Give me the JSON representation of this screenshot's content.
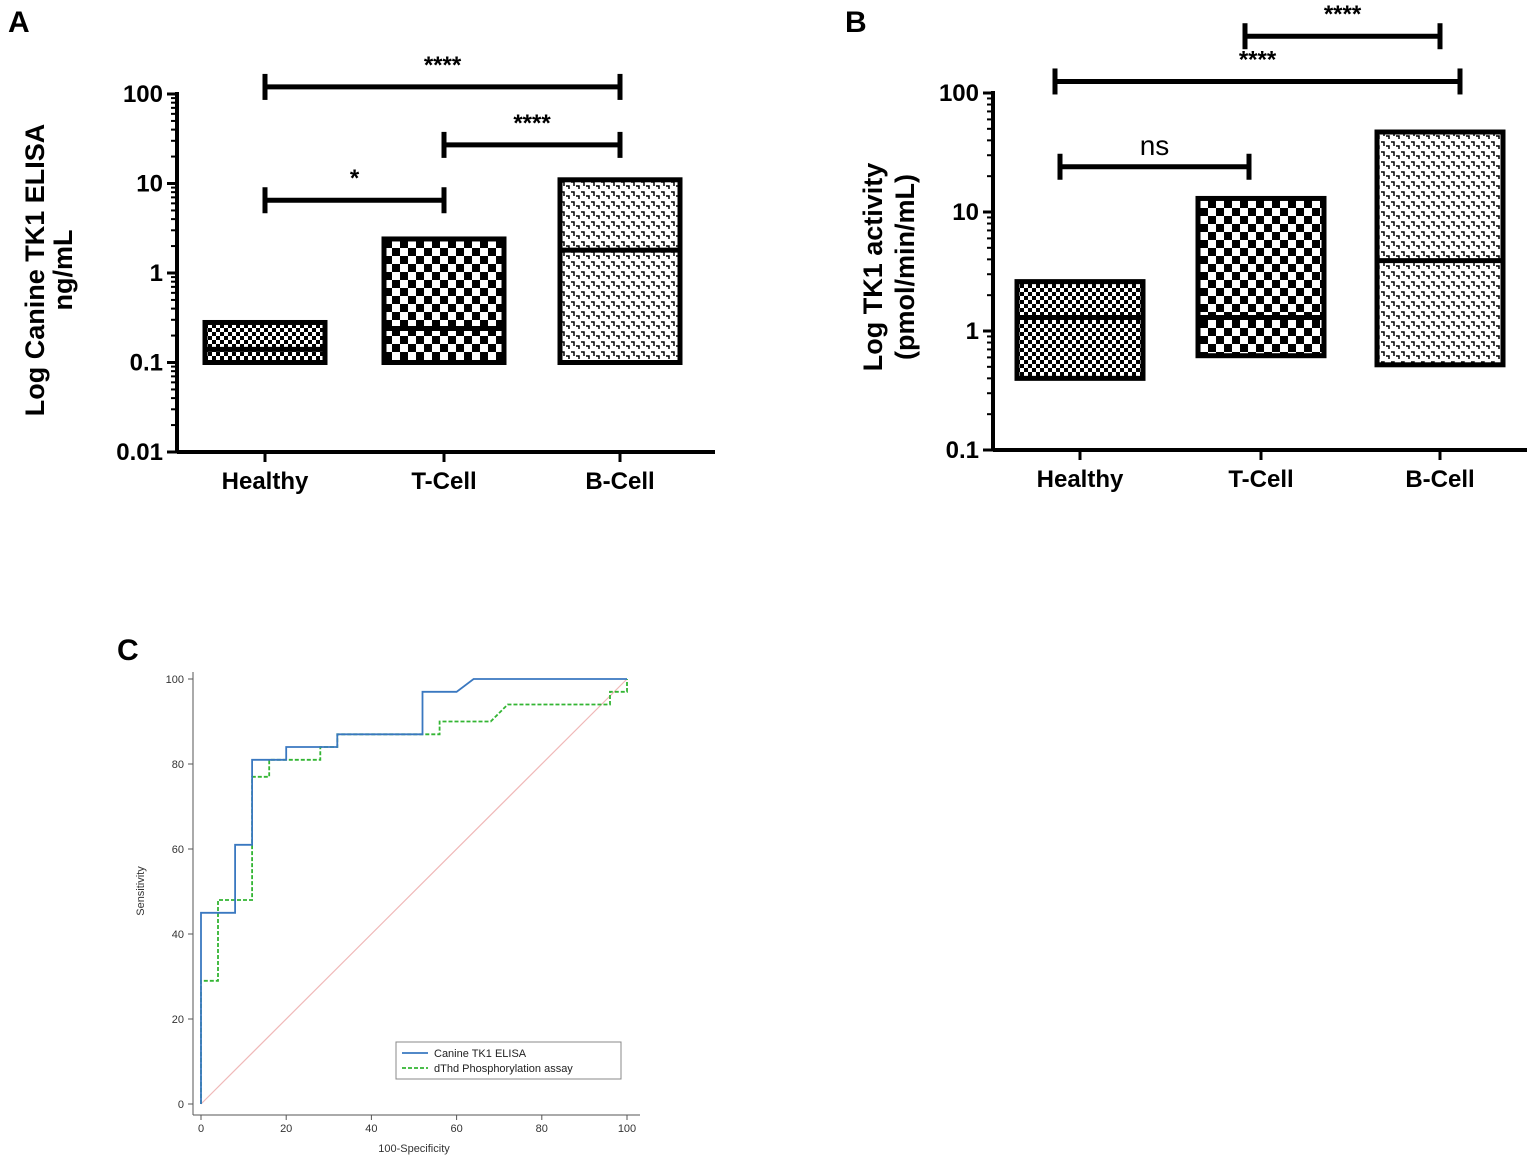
{
  "chart_data": [
    {
      "panel": "A",
      "type": "bar",
      "scale": "log",
      "ylabel_line1": "Log Canine TK1 ELISA",
      "ylabel_line2": "ng/mL",
      "ylim": [
        0.01,
        100
      ],
      "yticks": [
        "0.01",
        "0.1",
        "1",
        "10",
        "100"
      ],
      "ytick_values": [
        0.01,
        0.1,
        1,
        10,
        100
      ],
      "categories": [
        "Healthy",
        "T-Cell",
        "B-Cell"
      ],
      "boxes": [
        {
          "category": "Healthy",
          "min": 0.1,
          "max": 0.28,
          "median": 0.14,
          "pattern": "dense-check"
        },
        {
          "category": "T-Cell",
          "min": 0.1,
          "max": 2.4,
          "median": 0.24,
          "pattern": "check"
        },
        {
          "category": "B-Cell",
          "min": 0.1,
          "max": 11,
          "median": 1.8,
          "pattern": "dash"
        }
      ],
      "comparisons": [
        {
          "from": "Healthy",
          "to": "B-Cell",
          "label": "****",
          "y": 120
        },
        {
          "from": "T-Cell",
          "to": "B-Cell",
          "label": "****",
          "y": 27
        },
        {
          "from": "Healthy",
          "to": "T-Cell",
          "label": "*",
          "y": 6.5
        }
      ]
    },
    {
      "panel": "B",
      "type": "bar",
      "scale": "log",
      "ylabel_line1": "Log TK1 activity",
      "ylabel_line2": "(pmol/min/mL)",
      "ylim": [
        0.1,
        100
      ],
      "yticks": [
        "0.1",
        "1",
        "10",
        "100"
      ],
      "ytick_values": [
        0.1,
        1,
        10,
        100
      ],
      "categories": [
        "Healthy",
        "T-Cell",
        "B-Cell"
      ],
      "boxes": [
        {
          "category": "Healthy",
          "min": 0.4,
          "max": 2.6,
          "median": 1.3,
          "pattern": "dense-check"
        },
        {
          "category": "T-Cell",
          "min": 0.62,
          "max": 13,
          "median": 1.3,
          "pattern": "check"
        },
        {
          "category": "B-Cell",
          "min": 0.52,
          "max": 47,
          "median": 3.9,
          "pattern": "dash"
        }
      ],
      "comparisons": [
        {
          "from": "T-Cell",
          "to": "B-Cell",
          "label": "****",
          "y": 300
        },
        {
          "from": "Healthy",
          "to": "B-Cell",
          "label": "****",
          "y": 125
        },
        {
          "from": "Healthy",
          "to": "T-Cell",
          "label": "ns",
          "y": 24
        }
      ]
    },
    {
      "panel": "C",
      "type": "line",
      "xlabel": "100-Specificity",
      "ylabel": "Sensitivity",
      "xlim": [
        0,
        100
      ],
      "ylim": [
        0,
        100
      ],
      "xticks": [
        "0",
        "20",
        "40",
        "60",
        "80",
        "100"
      ],
      "yticks": [
        "0",
        "20",
        "40",
        "60",
        "80",
        "100"
      ],
      "tick_values": [
        0,
        20,
        40,
        60,
        80,
        100
      ],
      "series": [
        {
          "name": "Canine TK1 ELISA",
          "color": "#3a78c0",
          "style": "solid",
          "points": [
            [
              0,
              0
            ],
            [
              0,
              29
            ],
            [
              0,
              45
            ],
            [
              8,
              45
            ],
            [
              8,
              61
            ],
            [
              12,
              61
            ],
            [
              12,
              81
            ],
            [
              20,
              81
            ],
            [
              20,
              84
            ],
            [
              32,
              84
            ],
            [
              32,
              87
            ],
            [
              52,
              87
            ],
            [
              52,
              97
            ],
            [
              60,
              97
            ],
            [
              64,
              100
            ],
            [
              100,
              100
            ]
          ]
        },
        {
          "name": "dThd Phosphorylation assay",
          "color": "#33b533",
          "style": "dashed",
          "points": [
            [
              0,
              0
            ],
            [
              0,
              29
            ],
            [
              4,
              29
            ],
            [
              4,
              48
            ],
            [
              12,
              48
            ],
            [
              12,
              77
            ],
            [
              16,
              77
            ],
            [
              16,
              81
            ],
            [
              28,
              81
            ],
            [
              28,
              84
            ],
            [
              32,
              84
            ],
            [
              32,
              87
            ],
            [
              56,
              87
            ],
            [
              56,
              90
            ],
            [
              68,
              90
            ],
            [
              72,
              94
            ],
            [
              96,
              94
            ],
            [
              96,
              97
            ],
            [
              100,
              97
            ],
            [
              100,
              100
            ]
          ]
        },
        {
          "name": "reference",
          "color": "#f0b8b8",
          "style": "solid",
          "points": [
            [
              0,
              0
            ],
            [
              100,
              100
            ]
          ]
        }
      ]
    }
  ],
  "panels": {
    "a_letter": "A",
    "b_letter": "B",
    "c_letter": "C"
  }
}
